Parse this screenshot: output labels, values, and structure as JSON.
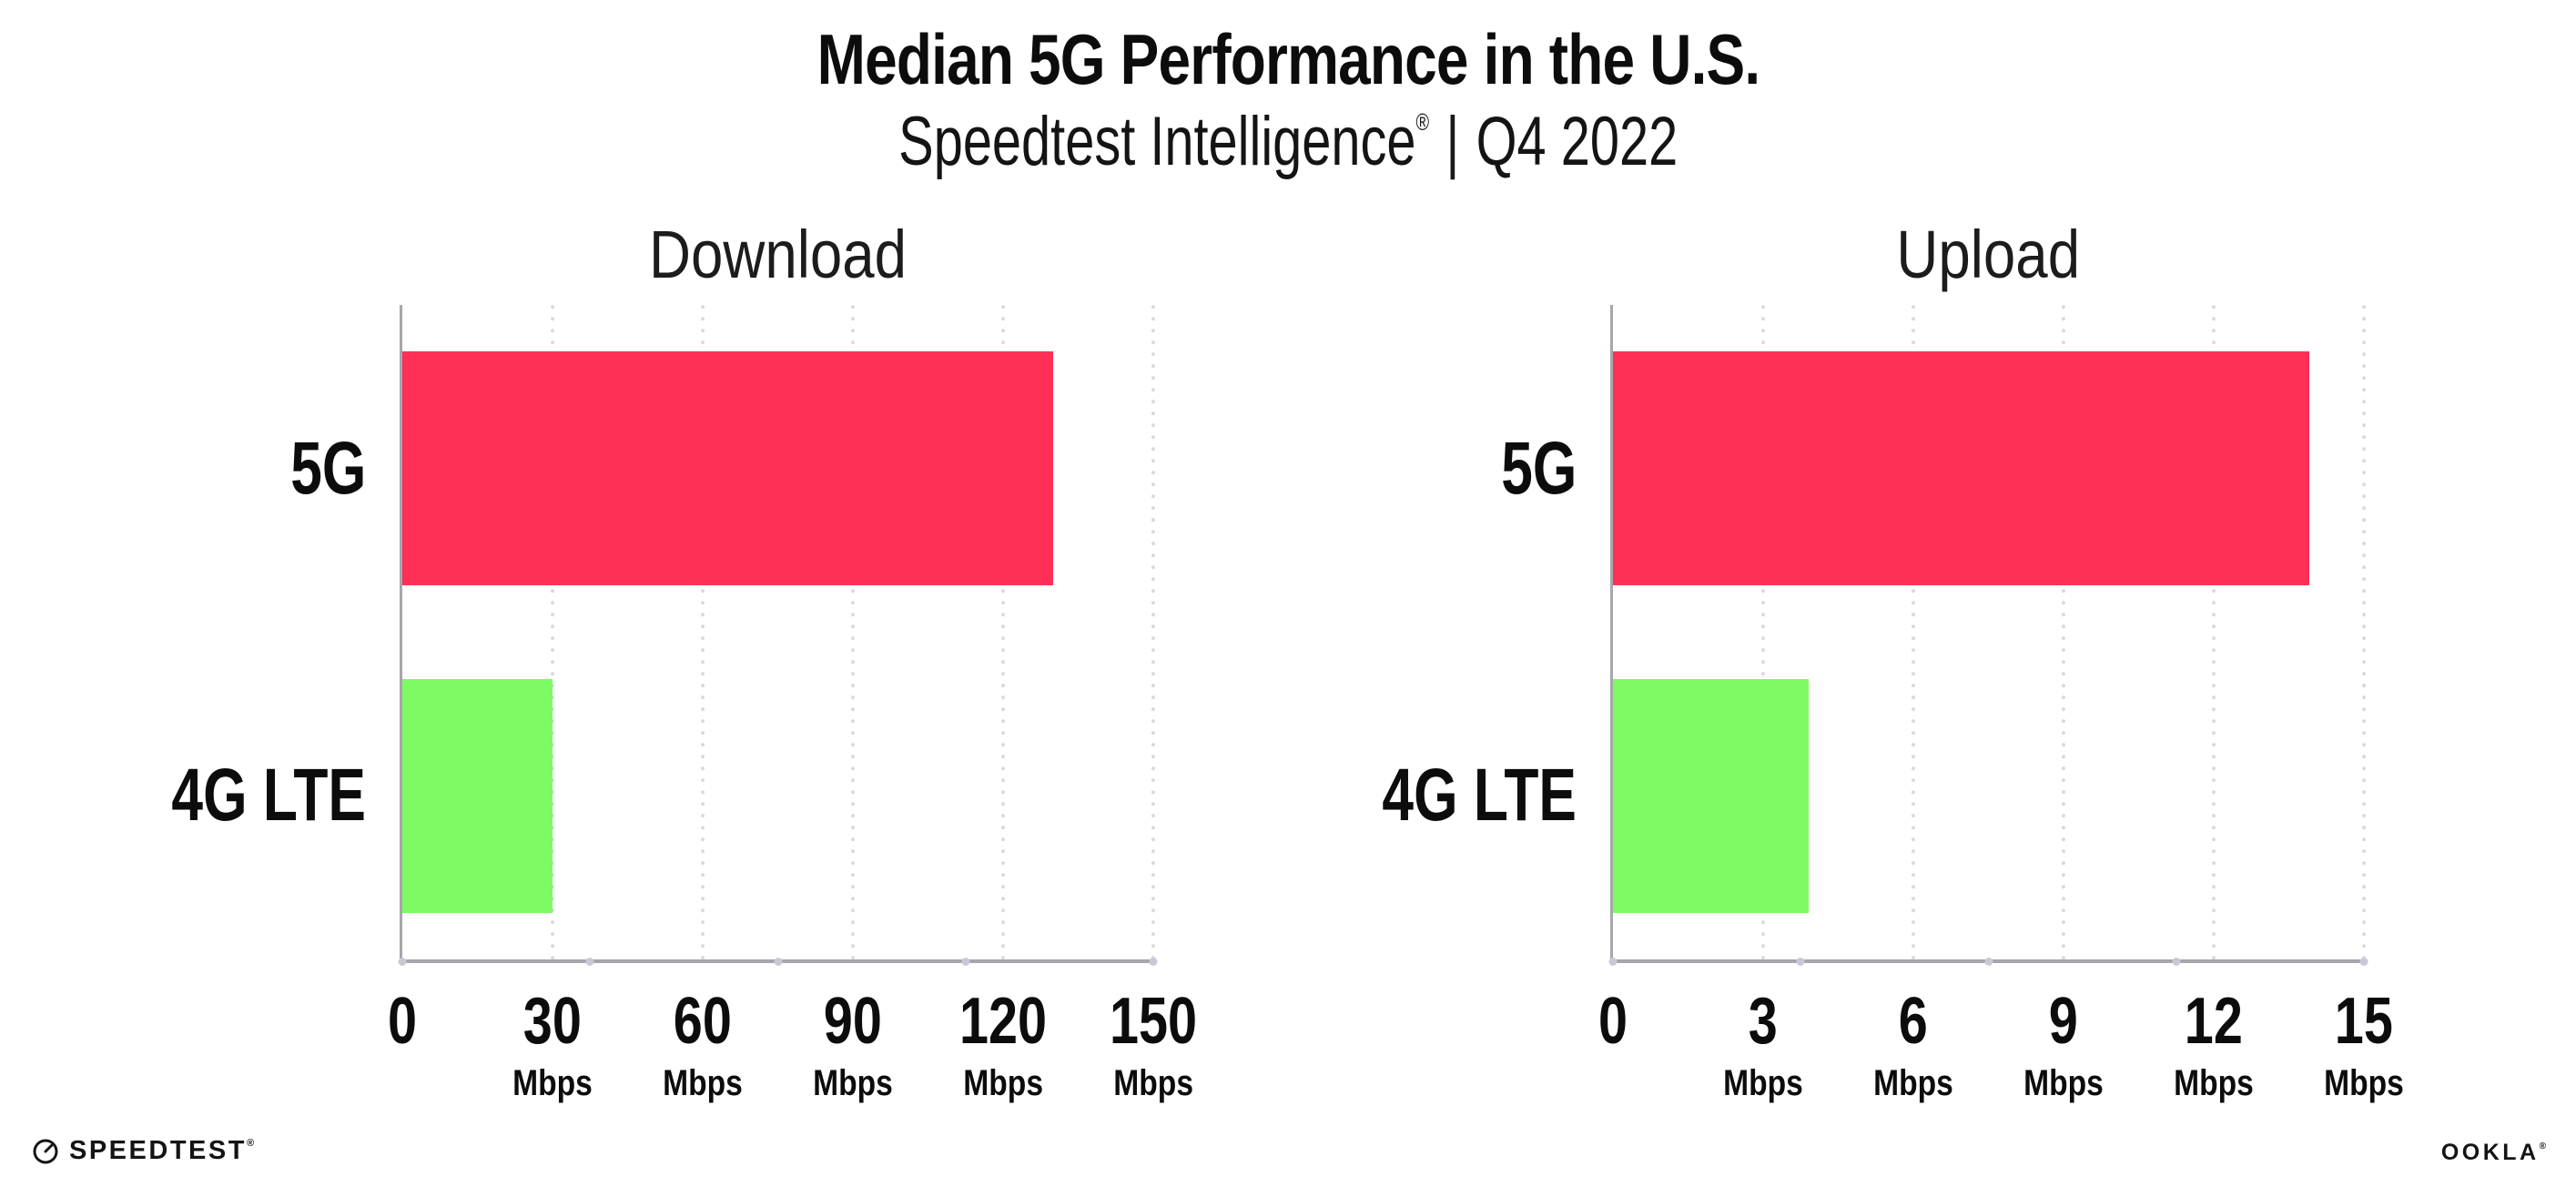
{
  "header": {
    "title": "Median 5G Performance in the U.S.",
    "subtitle_brand": "Speedtest Intelligence",
    "subtitle_reg_mark": "®",
    "subtitle_separator": "|",
    "subtitle_period": "Q4 2022"
  },
  "footer": {
    "speedtest_wordmark": "SPEEDTEST",
    "speedtest_mark": "®",
    "ookla_wordmark": "OOKLA",
    "ookla_mark": "®"
  },
  "colors": {
    "bar_5g": "#FF2F56",
    "bar_4g_lte": "#7EFB64",
    "axis": "#a6a6ac",
    "gridline": "#d9d9e3",
    "text": "#0c0c0c"
  },
  "chart_data": [
    {
      "type": "bar",
      "orientation": "horizontal",
      "title": "Download",
      "categories": [
        "5G",
        "4G LTE"
      ],
      "values": [
        130,
        30
      ],
      "unit": "Mbps",
      "xlim": [
        0,
        150
      ],
      "xticks": [
        0,
        30,
        60,
        90,
        120,
        150
      ],
      "xtick_unit": "Mbps",
      "grid": "vertical-dotted",
      "legend": "none",
      "bar_colors": [
        "#FF2F56",
        "#7EFB64"
      ]
    },
    {
      "type": "bar",
      "orientation": "horizontal",
      "title": "Upload",
      "categories": [
        "5G",
        "4G LTE"
      ],
      "values": [
        13.9,
        3.9
      ],
      "unit": "Mbps",
      "xlim": [
        0,
        15
      ],
      "xticks": [
        0,
        3,
        6,
        9,
        12,
        15
      ],
      "xtick_unit": "Mbps",
      "grid": "vertical-dotted",
      "legend": "none",
      "bar_colors": [
        "#FF2F56",
        "#7EFB64"
      ]
    }
  ]
}
